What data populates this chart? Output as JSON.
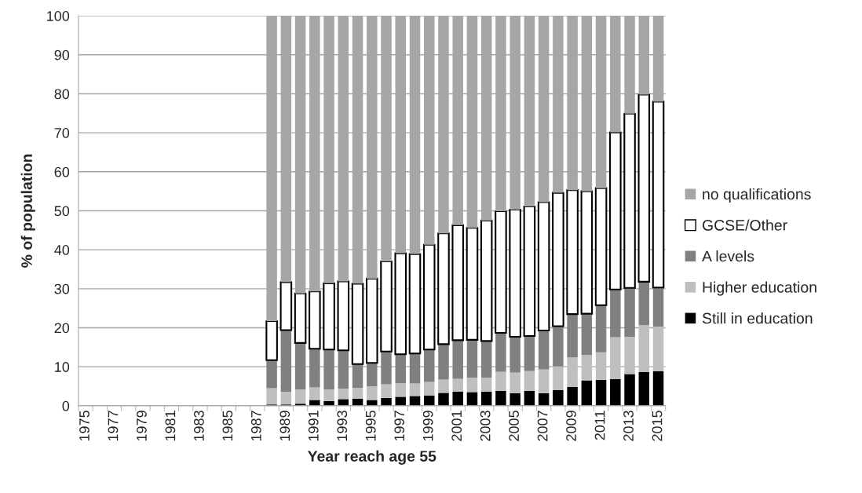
{
  "chart_data": {
    "type": "bar",
    "stacked": true,
    "xlabel": "Year reach age 55",
    "ylabel": "% of population",
    "categories": [
      "1975",
      null,
      "1977",
      null,
      "1979",
      null,
      "1981",
      null,
      "1983",
      null,
      "1985",
      null,
      "1987",
      null,
      "1989",
      null,
      "1991",
      null,
      "1993",
      null,
      "1995",
      null,
      "1997",
      null,
      "1999",
      null,
      "2001",
      null,
      "2003",
      null,
      "2005",
      null,
      "2007",
      null,
      "2009",
      null,
      "2011",
      null,
      "2013",
      null,
      "2015"
    ],
    "series": [
      {
        "name": "Still in education",
        "color": "#000000",
        "values": [
          null,
          null,
          null,
          null,
          null,
          null,
          null,
          null,
          null,
          null,
          null,
          null,
          null,
          0.3,
          0.3,
          0.5,
          1.5,
          1.2,
          1.7,
          1.8,
          1.5,
          2.0,
          2.3,
          2.5,
          2.6,
          3.3,
          3.6,
          3.5,
          3.6,
          3.8,
          3.2,
          3.8,
          3.2,
          4.0,
          4.8,
          6.5,
          6.6,
          6.8,
          8.1,
          8.7,
          8.9
        ]
      },
      {
        "name": "Higher education",
        "color": "#bfbfbf",
        "values": [
          null,
          null,
          null,
          null,
          null,
          null,
          null,
          null,
          null,
          null,
          null,
          null,
          null,
          4.2,
          3.3,
          3.7,
          3.2,
          3.0,
          2.7,
          2.8,
          3.5,
          3.5,
          3.5,
          3.2,
          3.5,
          3.4,
          3.3,
          3.7,
          3.6,
          4.9,
          5.3,
          5.1,
          6.1,
          6.1,
          7.6,
          6.5,
          7.1,
          10.8,
          9.6,
          12.0,
          11.4
        ]
      },
      {
        "name": "A levels",
        "color": "#808080",
        "values": [
          null,
          null,
          null,
          null,
          null,
          null,
          null,
          null,
          null,
          null,
          null,
          null,
          null,
          7.2,
          15.8,
          11.9,
          9.9,
          10.2,
          9.8,
          6.1,
          6.0,
          8.4,
          7.4,
          7.7,
          8.3,
          9.1,
          9.9,
          9.7,
          9.4,
          10.0,
          9.2,
          9.0,
          10.0,
          10.3,
          11.1,
          10.6,
          12.1,
          12.2,
          12.5,
          11.1,
          10.0
        ]
      },
      {
        "name": "GCSE/Other",
        "color": "#ffffff",
        "values": [
          null,
          null,
          null,
          null,
          null,
          null,
          null,
          null,
          null,
          null,
          null,
          null,
          null,
          10.0,
          12.3,
          12.7,
          14.7,
          17.0,
          17.7,
          20.6,
          21.6,
          23.1,
          25.9,
          25.5,
          26.9,
          28.4,
          29.5,
          28.7,
          30.9,
          31.2,
          32.6,
          33.2,
          32.9,
          34.2,
          31.8,
          31.4,
          30.0,
          40.3,
          44.7,
          48.0,
          47.7
        ]
      },
      {
        "name": "no qualifications",
        "color": "#a6a6a6",
        "values": [
          null,
          null,
          null,
          null,
          null,
          null,
          null,
          null,
          null,
          null,
          null,
          null,
          null,
          78.3,
          68.3,
          71.2,
          70.7,
          68.6,
          68.1,
          68.7,
          67.4,
          63.0,
          60.9,
          61.1,
          58.7,
          55.8,
          53.7,
          54.4,
          52.5,
          50.1,
          49.7,
          48.9,
          47.8,
          45.4,
          44.7,
          45.0,
          44.2,
          29.9,
          25.1,
          20.2,
          22.0
        ]
      }
    ],
    "ylim": [
      0,
      100
    ],
    "yticks": [
      0,
      10,
      20,
      30,
      40,
      50,
      60,
      70,
      80,
      90,
      100
    ],
    "grid": "y",
    "legend": "right"
  }
}
